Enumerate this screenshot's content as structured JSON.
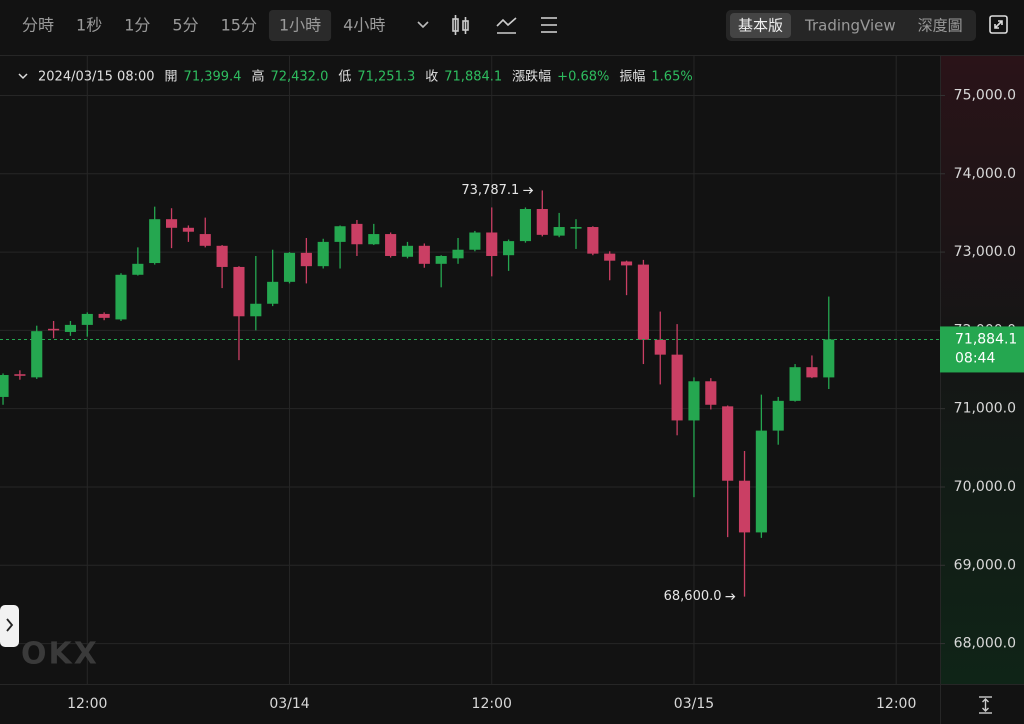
{
  "toolbar": {
    "intervals": [
      "分時",
      "1秒",
      "1分",
      "5分",
      "15分",
      "1小時",
      "4小時"
    ],
    "active_interval": 5,
    "views": [
      "基本版",
      "TradingView",
      "深度圖"
    ],
    "active_view": 0
  },
  "ohlc_header": {
    "date": "2024/03/15 08:00",
    "items": [
      {
        "label": "開",
        "value": "71,399.4"
      },
      {
        "label": "高",
        "value": "72,432.0"
      },
      {
        "label": "低",
        "value": "71,251.3"
      },
      {
        "label": "收",
        "value": "71,884.1"
      },
      {
        "label": "漲跌幅",
        "value": "+0.68%"
      },
      {
        "label": "振幅",
        "value": "1.65%"
      }
    ]
  },
  "watermark": "OKX",
  "chart_data": {
    "type": "candlestick",
    "up_color": "#25a750",
    "down_color": "#ca3f64",
    "grid": true,
    "open": [
      71150,
      71440,
      71400,
      72020,
      71980,
      72070,
      72210,
      72140,
      72710,
      72860,
      73420,
      73310,
      73230,
      73080,
      72810,
      72180,
      72340,
      72620,
      72990,
      72820,
      73130,
      73360,
      73100,
      73230,
      72940,
      73080,
      72850,
      72920,
      73030,
      73250,
      72960,
      73140,
      73550,
      73210,
      73300,
      73320,
      72980,
      72880,
      72840,
      71880,
      71690,
      70850,
      71350,
      71030,
      70080,
      69420,
      70720,
      71100,
      71530,
      71399.4
    ],
    "high": [
      71450,
      71490,
      72060,
      72120,
      72120,
      72230,
      72230,
      72730,
      73060,
      73580,
      73560,
      73340,
      73440,
      73090,
      72820,
      72950,
      73030,
      73000,
      73180,
      73170,
      73340,
      73410,
      73360,
      73250,
      73130,
      73110,
      72960,
      73180,
      73270,
      73570,
      73160,
      73570,
      73787.1,
      73500,
      73420,
      73330,
      73010,
      72890,
      72900,
      72240,
      72080,
      71400,
      71390,
      71040,
      70460,
      71180,
      71150,
      71570,
      71680,
      72432.0
    ],
    "low": [
      71050,
      71370,
      71380,
      71900,
      71930,
      71920,
      72130,
      72120,
      72700,
      72840,
      73050,
      73130,
      73060,
      72540,
      71620,
      72000,
      72310,
      72600,
      72600,
      72790,
      72790,
      72950,
      73090,
      72930,
      72920,
      72800,
      72550,
      72850,
      73010,
      72690,
      72760,
      73120,
      73200,
      73190,
      73040,
      72960,
      72640,
      72450,
      71570,
      71310,
      70660,
      69870,
      70990,
      69360,
      68600,
      69350,
      70540,
      71090,
      71390,
      71251.3
    ],
    "close": [
      71430,
      71420,
      71990,
      72000,
      72070,
      72210,
      72160,
      72710,
      72850,
      73420,
      73310,
      73260,
      73080,
      72810,
      72180,
      72340,
      72620,
      72990,
      72820,
      73130,
      73330,
      73100,
      73230,
      72950,
      73080,
      72850,
      72950,
      73030,
      73250,
      72950,
      73140,
      73550,
      73220,
      73320,
      73320,
      72980,
      72890,
      72830,
      71880,
      71690,
      70850,
      71350,
      71050,
      70080,
      69420,
      70720,
      71100,
      71530,
      71400,
      71884.1
    ],
    "ylim": [
      67484,
      75504
    ],
    "yticks": [
      {
        "value": 68000,
        "label": "68,000.0"
      },
      {
        "value": 69000,
        "label": "69,000.0"
      },
      {
        "value": 70000,
        "label": "70,000.0"
      },
      {
        "value": 71000,
        "label": "71,000.0"
      },
      {
        "value": 72000,
        "label": "72,000.0"
      },
      {
        "value": 73000,
        "label": "73,000.0"
      },
      {
        "value": 74000,
        "label": "74,000.0"
      },
      {
        "value": 75000,
        "label": "75,000.0"
      }
    ],
    "xlim": [
      -0.18,
      55.6
    ],
    "xticks": [
      {
        "value": 5,
        "label": "12:00"
      },
      {
        "value": 17,
        "label": "03/14"
      },
      {
        "value": 29,
        "label": "12:00"
      },
      {
        "value": 41,
        "label": "03/15"
      },
      {
        "value": 53,
        "label": "12:00"
      }
    ],
    "max_label": "73,787.1",
    "min_label": "68,600.0",
    "last_price_label": "71,884.1",
    "countdown": "08:44"
  }
}
